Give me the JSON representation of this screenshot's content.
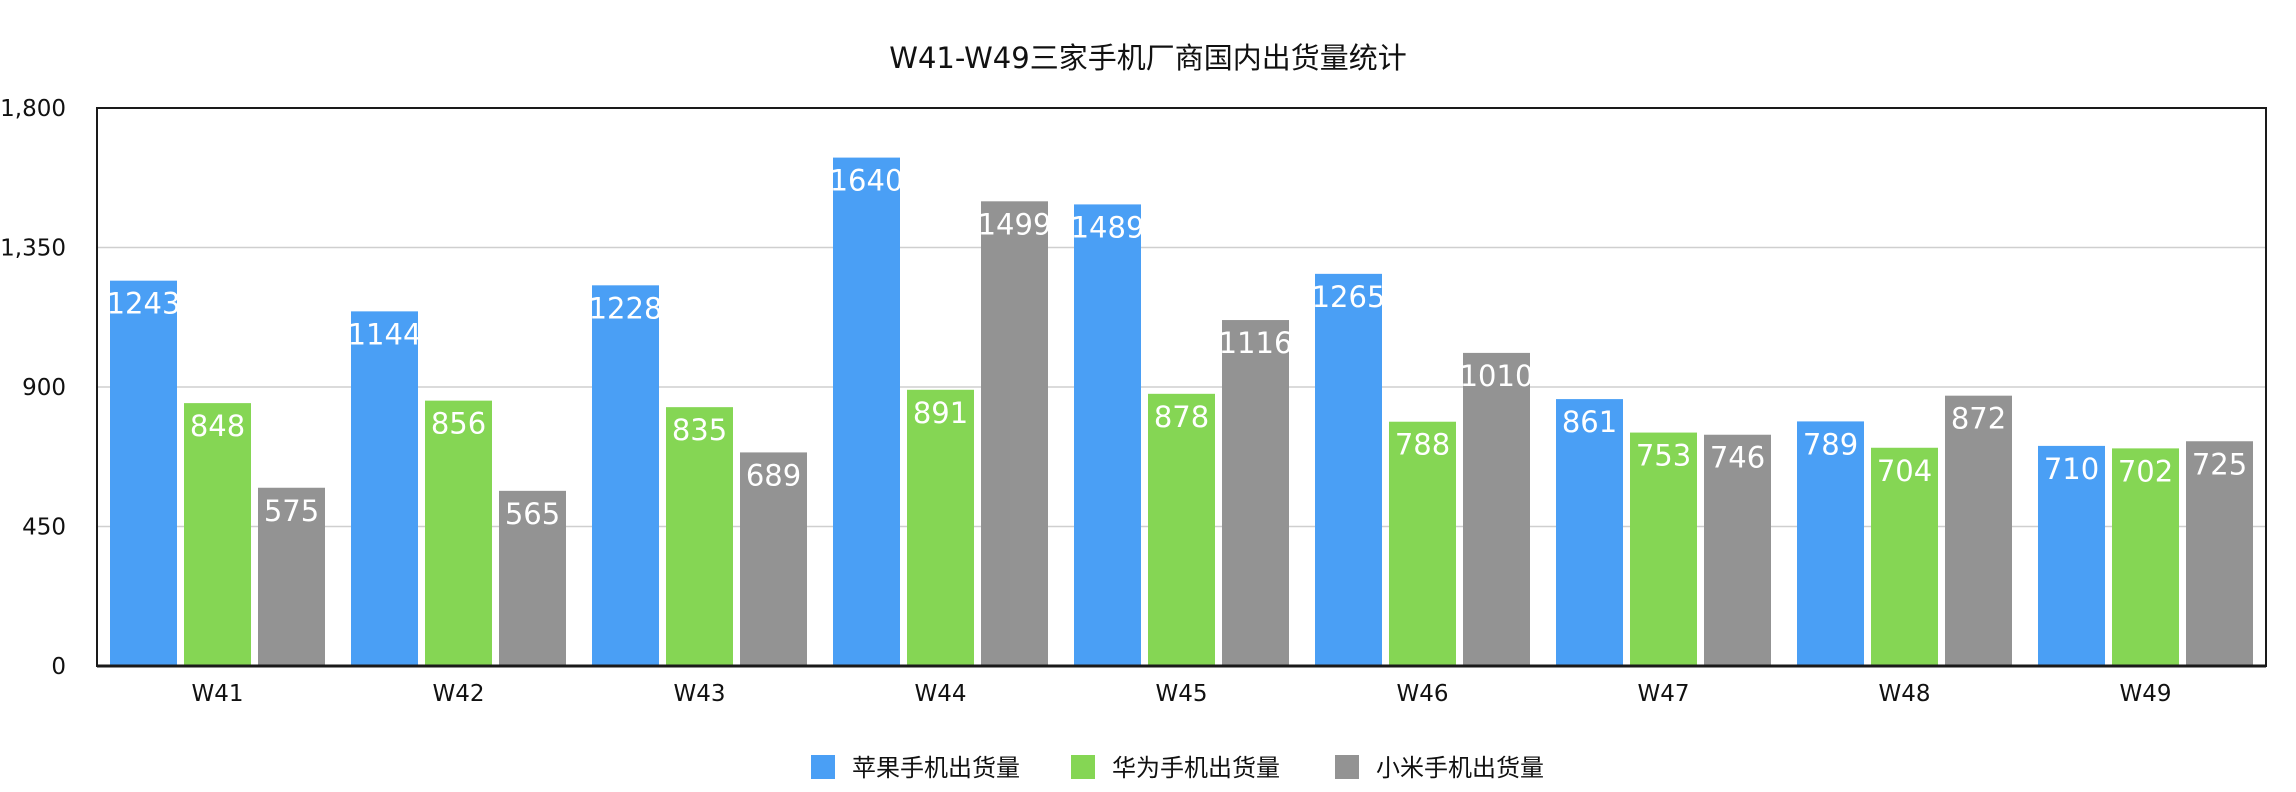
{
  "chart_data": {
    "type": "bar",
    "title": "W41-W49三家手机厂商国内出货量统计",
    "xlabel": "",
    "ylabel": "",
    "ylim": [
      0,
      1800
    ],
    "yticks": [
      0,
      450,
      900,
      1350,
      1800
    ],
    "ytick_labels": [
      "0",
      "450",
      "900",
      "1,350",
      "1,800"
    ],
    "grid": true,
    "legend_position": "bottom",
    "categories": [
      "W41",
      "W42",
      "W43",
      "W44",
      "W45",
      "W46",
      "W47",
      "W48",
      "W49"
    ],
    "series": [
      {
        "name": "苹果手机出货量",
        "color": "#4a9ff5",
        "values": [
          1243,
          1144,
          1228,
          1640,
          1489,
          1265,
          861,
          789,
          710
        ]
      },
      {
        "name": "华为手机出货量",
        "color": "#85d654",
        "values": [
          848,
          856,
          835,
          891,
          878,
          788,
          753,
          704,
          702
        ]
      },
      {
        "name": "小米手机出货量",
        "color": "#939393",
        "values": [
          575,
          565,
          689,
          1499,
          1116,
          1010,
          746,
          872,
          725
        ]
      }
    ]
  }
}
